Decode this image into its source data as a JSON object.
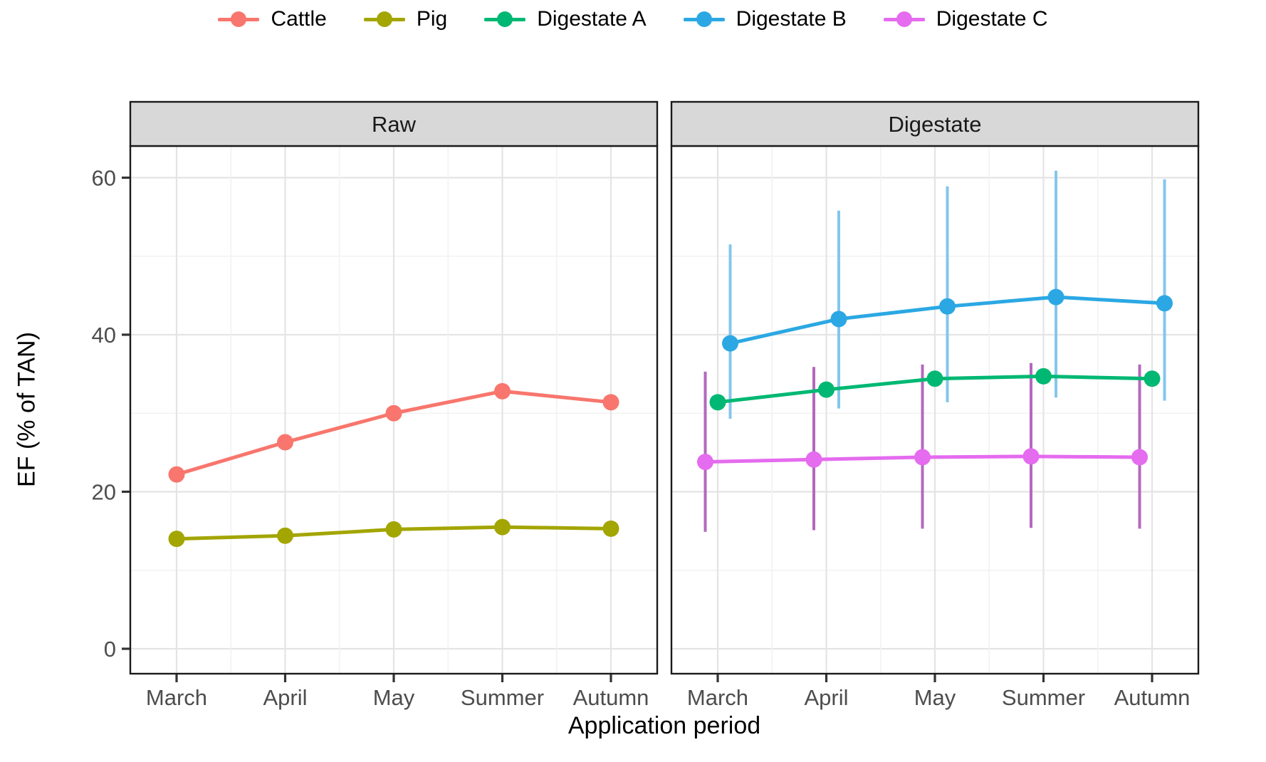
{
  "legend": {
    "items": [
      {
        "label": "Cattle",
        "color": "#F8766D"
      },
      {
        "label": "Pig",
        "color": "#A3A500"
      },
      {
        "label": "Digestate A",
        "color": "#00B873"
      },
      {
        "label": "Digestate B",
        "color": "#2BA8E3"
      },
      {
        "label": "Digestate C",
        "color": "#E56BEF"
      }
    ]
  },
  "chart_data": {
    "type": "line",
    "subtype": "pointrange",
    "title": "",
    "xlabel": "Application period",
    "ylabel": "EF (% of TAN)",
    "categories": [
      "March",
      "April",
      "May",
      "Summer",
      "Autumn"
    ],
    "yticks": [
      0,
      20,
      40,
      60
    ],
    "ylim": [
      -3.2,
      64.0
    ],
    "grid": {
      "major": true,
      "minor": true
    },
    "facets": [
      {
        "title": "Raw",
        "series": [
          {
            "name": "Cattle",
            "color": "#F8766D",
            "dodge": 0,
            "values": [
              22.2,
              26.3,
              30.0,
              32.8,
              31.4
            ],
            "errors": null
          },
          {
            "name": "Pig",
            "color": "#A3A500",
            "dodge": 0,
            "values": [
              14.0,
              14.4,
              15.2,
              15.5,
              15.3
            ],
            "errors": null
          }
        ]
      },
      {
        "title": "Digestate",
        "series": [
          {
            "name": "Digestate C",
            "color": "#E56BEF",
            "bar_color": "#B468BE",
            "dodge": -17.5,
            "values": [
              23.8,
              24.1,
              24.4,
              24.5,
              24.4
            ],
            "errors": [
              [
                14.9,
                35.3
              ],
              [
                15.1,
                35.9
              ],
              [
                15.3,
                36.2
              ],
              [
                15.4,
                36.4
              ],
              [
                15.3,
                36.2
              ]
            ]
          },
          {
            "name": "Digestate A",
            "color": "#00B873",
            "dodge": 0,
            "values": [
              31.4,
              33.0,
              34.4,
              34.7,
              34.4
            ],
            "errors": null
          },
          {
            "name": "Digestate B",
            "color": "#2BA8E3",
            "bar_color": "#85C6EC",
            "dodge": 17.5,
            "values": [
              38.9,
              42.0,
              43.6,
              44.8,
              44.0
            ],
            "errors": [
              [
                29.3,
                51.5
              ],
              [
                30.6,
                55.8
              ],
              [
                31.4,
                58.9
              ],
              [
                32.0,
                60.9
              ],
              [
                31.6,
                59.8
              ]
            ]
          }
        ]
      }
    ],
    "style": {
      "strip_fill": "#D8D8D8",
      "strip_border": "#1A1A1A",
      "panel_border": "#1A1A1A",
      "grid_major": "#E4E4E4",
      "grid_minor": "#F2F2F2",
      "tick_color": "#333333",
      "tick_label_color": "#4D4D4D"
    }
  }
}
